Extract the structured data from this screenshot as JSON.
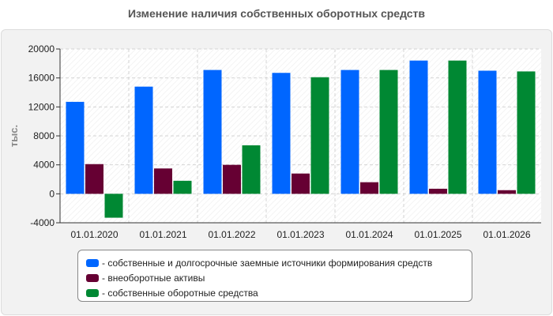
{
  "chart_data": {
    "type": "bar",
    "title": "Изменение наличия собственных оборотных средств",
    "ylabel": "тыс.",
    "xlabel": "",
    "ylim": [
      -4000,
      20000
    ],
    "yticks": [
      "20000",
      "16000",
      "12000",
      "8000",
      "4000",
      "0",
      "-4000"
    ],
    "ytick_values": [
      20000,
      16000,
      12000,
      8000,
      4000,
      0,
      -4000
    ],
    "categories": [
      "01.01.2020",
      "01.01.2021",
      "01.01.2022",
      "01.01.2023",
      "01.01.2024",
      "01.01.2025",
      "01.01.2026"
    ],
    "grid": true,
    "legend_position": "bottom",
    "series": [
      {
        "name": "- собственные и долгосрочные заемные источники формирования средств",
        "color": "#0066ff",
        "values": [
          12700,
          14800,
          17100,
          16700,
          17100,
          18400,
          17000
        ]
      },
      {
        "name": "- внеоборотные активы",
        "color": "#660033",
        "values": [
          4100,
          3500,
          4000,
          2800,
          1600,
          700,
          500
        ]
      },
      {
        "name": "- собственные оборотные средства",
        "color": "#008833",
        "values": [
          -3300,
          1800,
          6700,
          16100,
          17100,
          18400,
          16900
        ]
      }
    ]
  }
}
